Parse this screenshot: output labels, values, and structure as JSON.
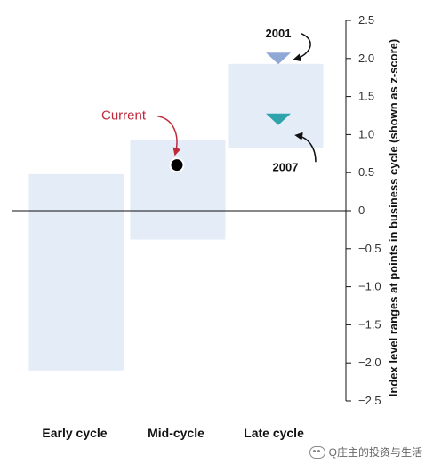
{
  "chart_data": {
    "type": "range-bar",
    "ylabel": "Index level ranges at points in business cycle (shown as z-score)",
    "ylim": [
      -2.5,
      2.5
    ],
    "yticks": [
      "2.5",
      "2.0",
      "1.5",
      "1.0",
      "0.5",
      "0",
      "−0.5",
      "−1.0",
      "−1.5",
      "−2.0",
      "−2.5"
    ],
    "yvalues": [
      2.5,
      2.0,
      1.5,
      1.0,
      0.5,
      0,
      -0.5,
      -1.0,
      -1.5,
      -2.0,
      -2.5
    ],
    "categories": [
      "Early cycle",
      "Mid-cycle",
      "Late cycle"
    ],
    "ranges": [
      {
        "category": "Early cycle",
        "low": -2.1,
        "high": 0.48
      },
      {
        "category": "Mid-cycle",
        "low": -0.38,
        "high": 0.93
      },
      {
        "category": "Late cycle",
        "low": 0.82,
        "high": 1.93
      }
    ],
    "markers": [
      {
        "label": "2001",
        "category": "Late cycle",
        "y": 2.0,
        "shape": "triangle",
        "color": "#8fa8d6"
      },
      {
        "label": "2007",
        "category": "Late cycle",
        "y": 1.2,
        "shape": "triangle",
        "color": "#2fa3ab"
      },
      {
        "label": "Current",
        "category": "Mid-cycle",
        "y": 0.6,
        "shape": "dot",
        "color": "#000000"
      }
    ],
    "colors": {
      "range": "#e3ecf7",
      "current_label": "#c0283a",
      "axis": "#111111"
    }
  },
  "watermark": {
    "text": "Q庄主的投资与生活",
    "icon": "wechat-icon"
  }
}
